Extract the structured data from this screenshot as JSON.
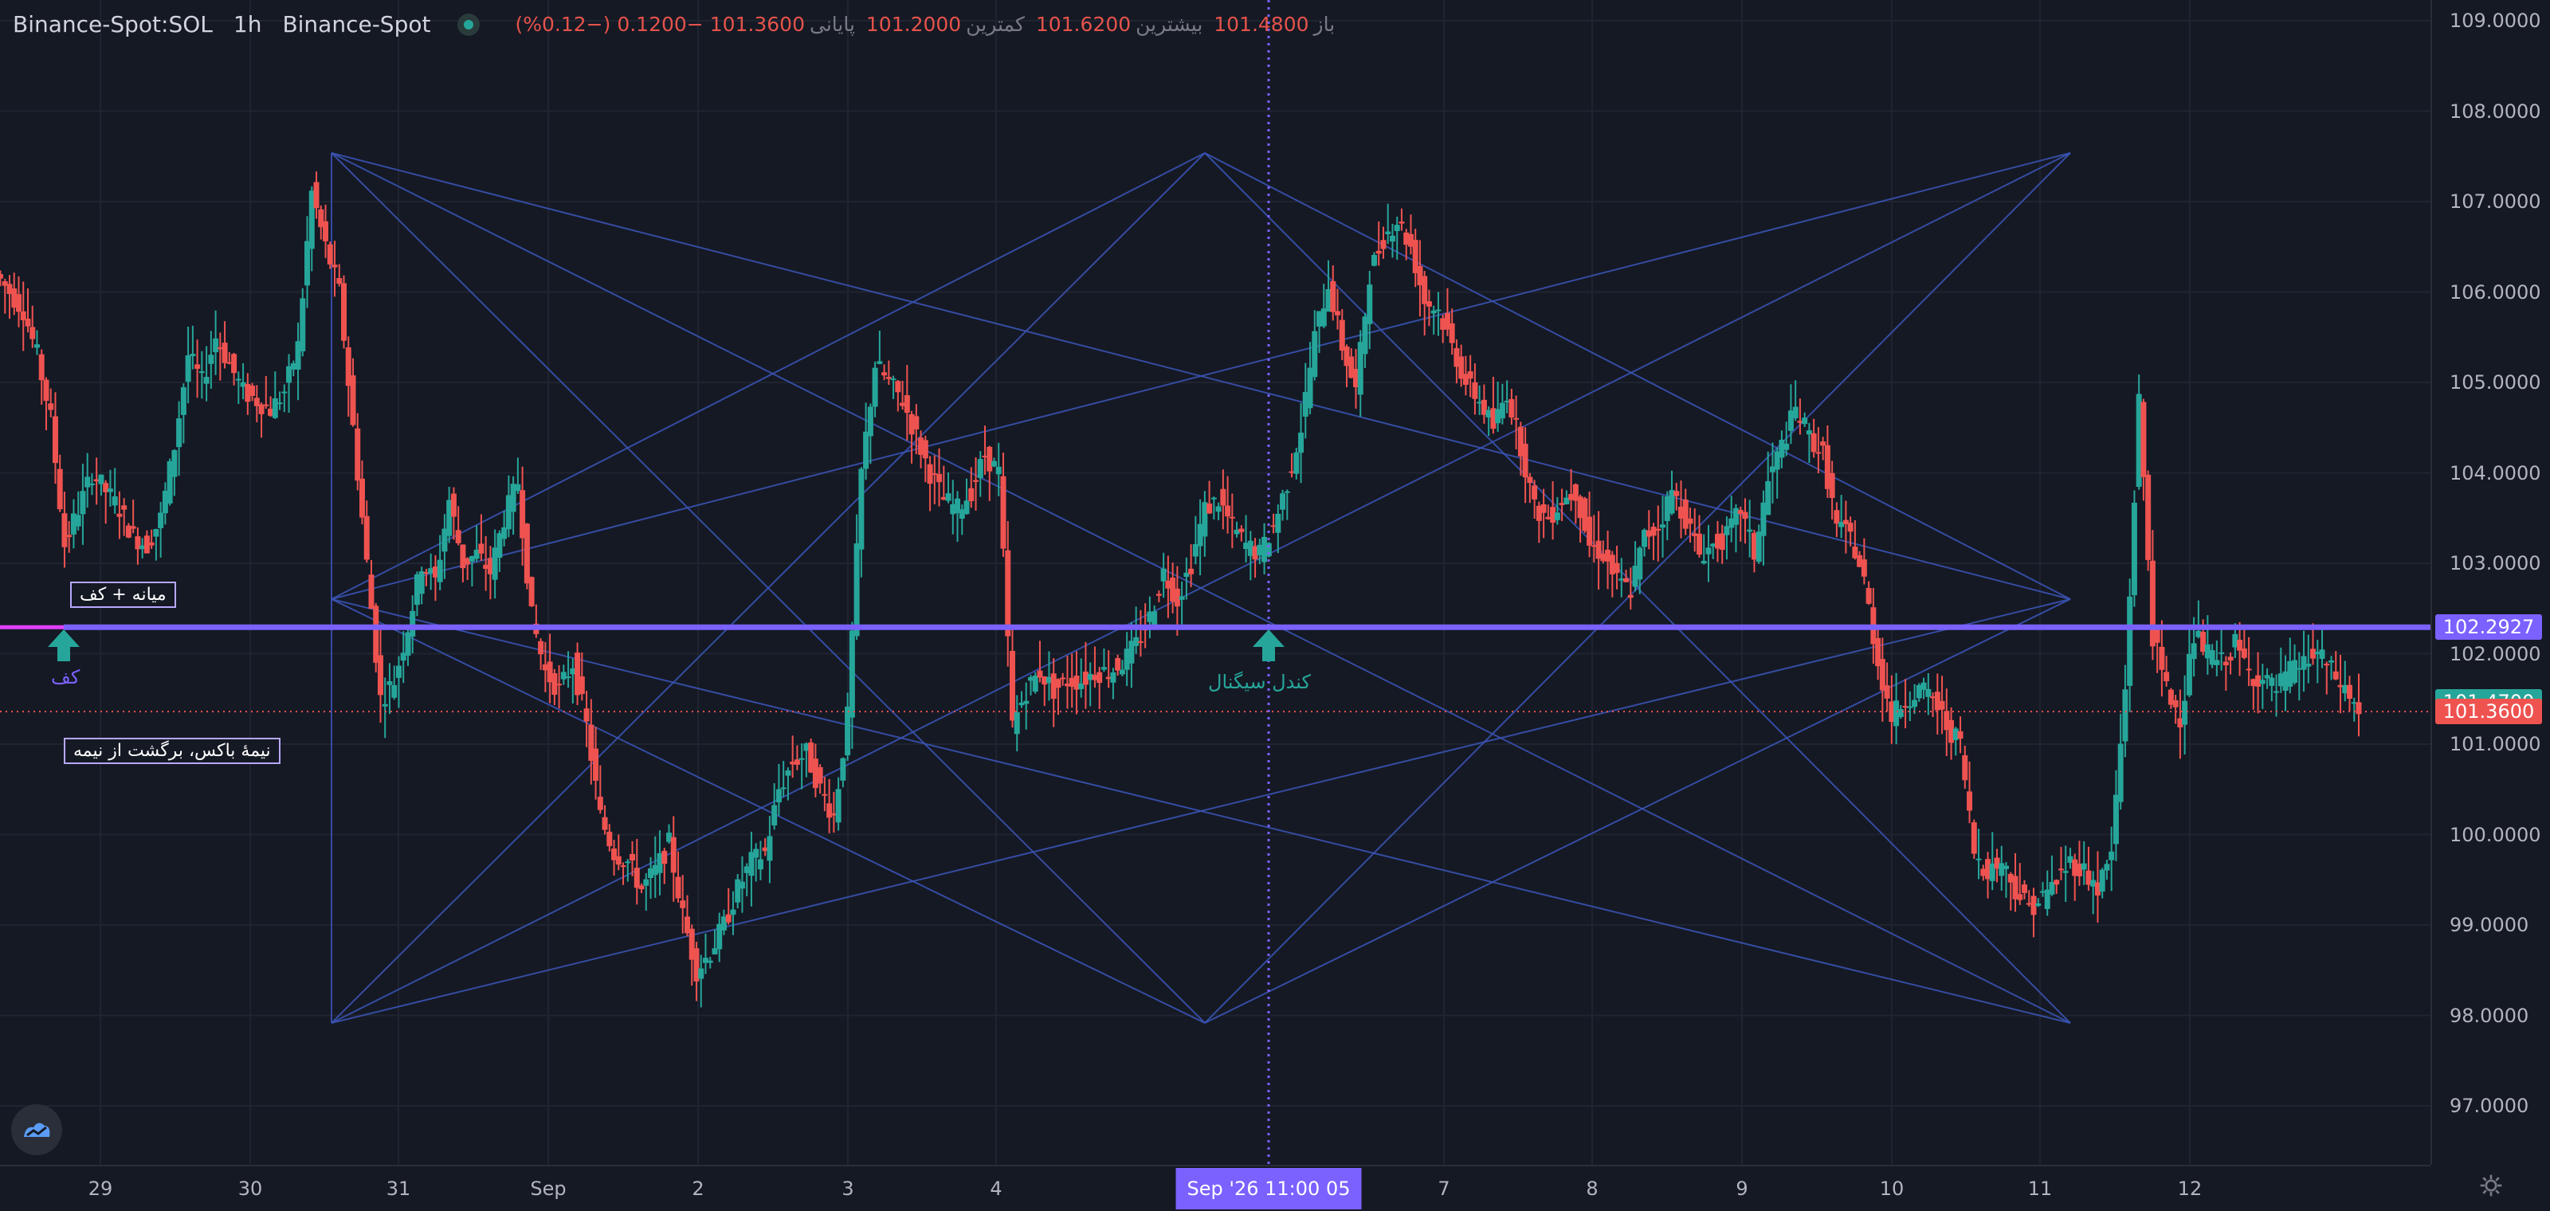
{
  "legend": {
    "symbol": "Binance-Spot:SOL",
    "timeframe": "1h",
    "exchange": "Binance-Spot",
    "open_label": "باز",
    "open": "101.4800",
    "high_label": "بیشترین",
    "high": "101.6200",
    "low_label": "کمترین",
    "low": "101.2000",
    "close_label": "پایانی",
    "close": "101.3600",
    "change": "−0.1200 (−0.12%)"
  },
  "price_axis": {
    "ticks": [
      "109.0000",
      "108.0000",
      "107.0000",
      "106.0000",
      "105.0000",
      "104.0000",
      "103.0000",
      "102.0000",
      "101.0000",
      "100.0000",
      "99.0000",
      "98.0000",
      "97.0000"
    ],
    "labels": {
      "level": "102.2927",
      "bid": "101.4700",
      "last": "101.3600"
    }
  },
  "time_axis": {
    "ticks": [
      "29",
      "30",
      "31",
      "Sep",
      "2",
      "3",
      "4",
      "7",
      "8",
      "9",
      "10",
      "11",
      "12"
    ],
    "crosshair_label": "Sep '26   11:00 05"
  },
  "annotations": {
    "box_top": "میانه + کف",
    "box_bottom": "نیمهٔ باکس، برگشت از نیمه",
    "arrow_left_label": "کف",
    "arrow_mid_label": "کندل سیگنال"
  },
  "colors": {
    "background": "#151924",
    "up": "#26a69a",
    "down": "#ef5350",
    "level_line": "#7b61ff",
    "pattern_lines": "#3b55b8",
    "grid": "#1f2430"
  },
  "chart_data": {
    "type": "candlestick",
    "symbol": "Binance-Spot:SOL",
    "interval": "1h",
    "ylim": [
      96.6,
      109.3
    ],
    "x_ticks": [
      "29",
      "30",
      "31",
      "Sep",
      "2",
      "3",
      "4",
      "7",
      "8",
      "9",
      "10",
      "11",
      "12"
    ],
    "horizontal_line": 102.2927,
    "last_price": 101.36,
    "close_path": [
      [
        0,
        106.0
      ],
      [
        1,
        105.8
      ],
      [
        2,
        105.3
      ],
      [
        3,
        104.6
      ],
      [
        4,
        103.2
      ],
      [
        5,
        103.6
      ],
      [
        6,
        104.0
      ],
      [
        7,
        103.8
      ],
      [
        8,
        103.6
      ],
      [
        9,
        103.3
      ],
      [
        10,
        103.2
      ],
      [
        11,
        103.5
      ],
      [
        12,
        104.3
      ],
      [
        13,
        105.3
      ],
      [
        14,
        105.0
      ],
      [
        15,
        105.5
      ],
      [
        16,
        105.2
      ],
      [
        17,
        104.9
      ],
      [
        18,
        104.8
      ],
      [
        19,
        104.7
      ],
      [
        20,
        104.9
      ],
      [
        21,
        105.4
      ],
      [
        22,
        107.1
      ],
      [
        23,
        106.5
      ],
      [
        24,
        106.0
      ],
      [
        25,
        104.5
      ],
      [
        26,
        103.0
      ],
      [
        27,
        101.5
      ],
      [
        28,
        101.7
      ],
      [
        29,
        102.3
      ],
      [
        30,
        103.0
      ],
      [
        31,
        102.8
      ],
      [
        32,
        103.7
      ],
      [
        33,
        103.0
      ],
      [
        34,
        103.1
      ],
      [
        35,
        102.9
      ],
      [
        36,
        103.5
      ],
      [
        37,
        103.9
      ],
      [
        38,
        102.4
      ],
      [
        39,
        101.8
      ],
      [
        40,
        101.6
      ],
      [
        41,
        101.9
      ],
      [
        42,
        101.2
      ],
      [
        43,
        100.2
      ],
      [
        44,
        99.8
      ],
      [
        45,
        99.7
      ],
      [
        46,
        99.4
      ],
      [
        47,
        99.6
      ],
      [
        48,
        99.9
      ],
      [
        49,
        99.1
      ],
      [
        50,
        98.5
      ],
      [
        51,
        98.7
      ],
      [
        52,
        99.0
      ],
      [
        53,
        99.4
      ],
      [
        54,
        99.7
      ],
      [
        55,
        99.8
      ],
      [
        56,
        100.5
      ],
      [
        57,
        100.8
      ],
      [
        58,
        100.9
      ],
      [
        59,
        100.5
      ],
      [
        60,
        100.2
      ],
      [
        61,
        101.3
      ],
      [
        62,
        104.0
      ],
      [
        63,
        105.2
      ],
      [
        64,
        105.0
      ],
      [
        65,
        104.8
      ],
      [
        66,
        104.4
      ],
      [
        67,
        104.0
      ],
      [
        68,
        103.7
      ],
      [
        69,
        103.6
      ],
      [
        70,
        103.8
      ],
      [
        71,
        104.2
      ],
      [
        72,
        104.0
      ],
      [
        73,
        101.2
      ],
      [
        74,
        101.6
      ],
      [
        75,
        101.8
      ],
      [
        76,
        101.6
      ],
      [
        77,
        101.7
      ],
      [
        78,
        101.7
      ],
      [
        79,
        101.8
      ],
      [
        80,
        101.8
      ],
      [
        81,
        101.9
      ],
      [
        82,
        102.1
      ],
      [
        83,
        102.4
      ],
      [
        84,
        102.9
      ],
      [
        85,
        102.6
      ],
      [
        86,
        103.0
      ],
      [
        87,
        103.6
      ],
      [
        88,
        103.7
      ],
      [
        89,
        103.4
      ],
      [
        90,
        103.2
      ],
      [
        91,
        103.1
      ],
      [
        92,
        103.4
      ],
      [
        93,
        103.9
      ],
      [
        94,
        104.5
      ],
      [
        95,
        105.5
      ],
      [
        96,
        106.1
      ],
      [
        97,
        105.4
      ],
      [
        98,
        104.9
      ],
      [
        99,
        106.2
      ],
      [
        100,
        106.6
      ],
      [
        101,
        106.8
      ],
      [
        102,
        106.5
      ],
      [
        103,
        105.9
      ],
      [
        104,
        105.8
      ],
      [
        105,
        105.4
      ],
      [
        106,
        105.0
      ],
      [
        107,
        104.8
      ],
      [
        108,
        104.5
      ],
      [
        109,
        104.9
      ],
      [
        110,
        104.3
      ],
      [
        111,
        103.6
      ],
      [
        112,
        103.5
      ],
      [
        113,
        103.7
      ],
      [
        114,
        103.8
      ],
      [
        115,
        103.2
      ],
      [
        116,
        103.1
      ],
      [
        117,
        102.8
      ],
      [
        118,
        102.7
      ],
      [
        119,
        103.3
      ],
      [
        120,
        103.4
      ],
      [
        121,
        103.8
      ],
      [
        122,
        103.5
      ],
      [
        123,
        103.1
      ],
      [
        124,
        103.2
      ],
      [
        125,
        103.3
      ],
      [
        126,
        103.6
      ],
      [
        127,
        103.1
      ],
      [
        128,
        103.9
      ],
      [
        129,
        104.3
      ],
      [
        130,
        104.7
      ],
      [
        131,
        104.4
      ],
      [
        132,
        104.2
      ],
      [
        133,
        103.4
      ],
      [
        134,
        103.3
      ],
      [
        135,
        102.8
      ],
      [
        136,
        101.9
      ],
      [
        137,
        101.3
      ],
      [
        138,
        101.5
      ],
      [
        139,
        101.6
      ],
      [
        140,
        101.5
      ],
      [
        141,
        101.2
      ],
      [
        142,
        101.0
      ],
      [
        143,
        99.8
      ],
      [
        144,
        99.6
      ],
      [
        145,
        99.7
      ],
      [
        146,
        99.4
      ],
      [
        147,
        99.2
      ],
      [
        148,
        99.3
      ],
      [
        149,
        99.5
      ],
      [
        150,
        99.7
      ],
      [
        151,
        99.6
      ],
      [
        152,
        99.4
      ],
      [
        153,
        99.8
      ],
      [
        154,
        101.6
      ],
      [
        155,
        104.8
      ],
      [
        156,
        102.2
      ],
      [
        157,
        101.6
      ],
      [
        158,
        101.3
      ],
      [
        159,
        102.2
      ],
      [
        160,
        102.0
      ],
      [
        161,
        101.9
      ],
      [
        162,
        102.1
      ],
      [
        163,
        101.8
      ],
      [
        164,
        101.7
      ],
      [
        165,
        101.6
      ],
      [
        166,
        101.8
      ],
      [
        167,
        101.9
      ],
      [
        168,
        102.0
      ],
      [
        169,
        101.8
      ],
      [
        170,
        101.6
      ],
      [
        171,
        101.36
      ]
    ]
  }
}
